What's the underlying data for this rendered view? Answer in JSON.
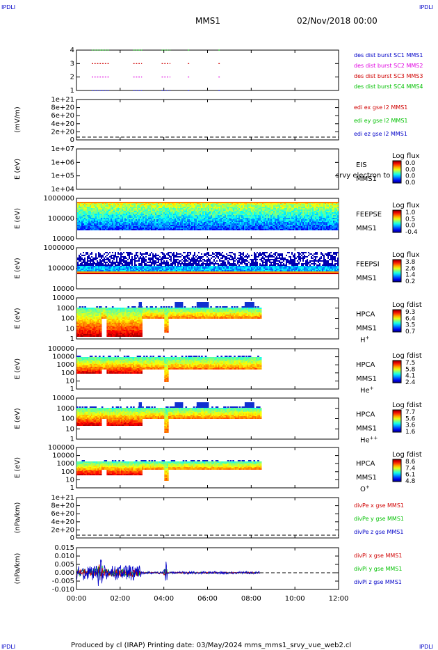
{
  "corner_label": "IPDLI",
  "header": {
    "spacecraft": "MMS1",
    "date": "02/Nov/2018 00:00"
  },
  "footer": {
    "text": "Produced by cl (IRAP)   Printing date: 03/May/2024   mms_mms1_srvy_vue_web2.cl"
  },
  "colors": {
    "red": "#d00000",
    "magenta": "#e000e0",
    "blue": "#0000c8",
    "green": "#00c000",
    "black": "#000000"
  },
  "chart_data": {
    "type": "heatmap",
    "x_ticks": [
      "00:00",
      "02:00",
      "04:00",
      "06:00",
      "08:00",
      "10:00",
      "12:00"
    ],
    "x_range_hours": [
      0,
      12
    ],
    "panels": [
      {
        "id": "burst",
        "type": "scatter",
        "ylabel": "",
        "y_ticks": [
          "4",
          "3",
          "2",
          "1"
        ],
        "legend": [
          {
            "text": "des dist burst SC1 MMS1",
            "color": "#0000c8"
          },
          {
            "text": "des dist burst SC2 MMS2",
            "color": "#e000e0"
          },
          {
            "text": "des dist burst SC3 MMS3",
            "color": "#d00000"
          },
          {
            "text": "des dist burst SC4 MMS4",
            "color": "#00c000"
          }
        ],
        "burst_intervals_hours": [
          [
            0.7,
            1.5
          ],
          [
            2.6,
            3.0
          ],
          [
            3.9,
            4.3
          ],
          [
            5.1,
            5.2
          ],
          [
            6.5,
            6.6
          ]
        ]
      },
      {
        "id": "edi",
        "type": "line",
        "ylabel": "(mV/m)",
        "y_ticks": [
          "1e+21",
          "8e+20",
          "6e+20",
          "4e+20",
          "2e+20",
          "0"
        ],
        "legend": [
          {
            "text": "edi ex gse l2 MMS1",
            "color": "#d00000"
          },
          {
            "text": "edi ey gse l2 MMS1",
            "color": "#00c000"
          },
          {
            "text": "edi ez gse l2 MMS1",
            "color": "#0000c8"
          }
        ]
      },
      {
        "id": "eis",
        "type": "heatmap",
        "ylabel": "E (eV)",
        "y_ticks": [
          "1e+07",
          "1e+06",
          "1e+05",
          "1e+04"
        ],
        "side": [
          "EIS",
          "MMS1"
        ],
        "overlay_text": "srvy electron to",
        "colorbar": {
          "title": "Log flux",
          "ticks": [
            "0.0",
            "0.0",
            "0.0",
            "0.0"
          ]
        }
      },
      {
        "id": "feepse",
        "type": "heatmap",
        "ylabel": "E (eV)",
        "y_ticks": [
          "1000000",
          "100000",
          "10000"
        ],
        "side": [
          "FEEPSE",
          "MMS1"
        ],
        "colorbar": {
          "title": "Log flux",
          "ticks": [
            "1.0",
            "0.5",
            "0.0",
            "-0.4"
          ]
        }
      },
      {
        "id": "feepsi",
        "type": "heatmap",
        "ylabel": "E (eV)",
        "y_ticks": [
          "1000000",
          "100000",
          "10000"
        ],
        "side": [
          "FEEPSI",
          "MMS1"
        ],
        "colorbar": {
          "title": "Log flux",
          "ticks": [
            "3.8",
            "2.6",
            "1.4",
            "0.2"
          ]
        }
      },
      {
        "id": "hpca_h",
        "type": "heatmap",
        "ylabel": "E (eV)",
        "y_ticks": [
          "10000",
          "1000",
          "100",
          "10",
          "1"
        ],
        "side": [
          "HPCA",
          "MMS1"
        ],
        "ion": "H",
        "ion_sup": "+",
        "colorbar": {
          "title": "Log fdist",
          "ticks": [
            "9.3",
            "6.4",
            "3.5",
            "0.7"
          ]
        }
      },
      {
        "id": "hpca_he",
        "type": "heatmap",
        "ylabel": "E (eV)",
        "y_ticks": [
          "100000",
          "10000",
          "1000",
          "100",
          "10",
          "1"
        ],
        "side": [
          "HPCA",
          "MMS1"
        ],
        "ion": "He",
        "ion_sup": "+",
        "colorbar": {
          "title": "Log fdist",
          "ticks": [
            "7.5",
            "5.8",
            "4.1",
            "2.4"
          ]
        }
      },
      {
        "id": "hpca_he2",
        "type": "heatmap",
        "ylabel": "E (eV)",
        "y_ticks": [
          "10000",
          "1000",
          "100",
          "10",
          "1"
        ],
        "side": [
          "HPCA",
          "MMS1"
        ],
        "ion": "He",
        "ion_sup": "++",
        "colorbar": {
          "title": "Log fdist",
          "ticks": [
            "7.7",
            "5.6",
            "3.6",
            "1.6"
          ]
        }
      },
      {
        "id": "hpca_o",
        "type": "heatmap",
        "ylabel": "E (eV)",
        "y_ticks": [
          "100000",
          "10000",
          "1000",
          "100",
          "10",
          "1"
        ],
        "side": [
          "HPCA",
          "MMS1"
        ],
        "ion": "O",
        "ion_sup": "+",
        "colorbar": {
          "title": "Log fdist",
          "ticks": [
            "8.6",
            "7.4",
            "6.1",
            "4.8"
          ]
        }
      },
      {
        "id": "divpe",
        "type": "line",
        "ylabel": "(nPa/km)",
        "y_ticks": [
          "1e+21",
          "8e+20",
          "6e+20",
          "4e+20",
          "2e+20",
          "0"
        ],
        "legend": [
          {
            "text": "divPe x gse MMS1",
            "color": "#d00000"
          },
          {
            "text": "divPe y gse MMS1",
            "color": "#00c000"
          },
          {
            "text": "divPe z gse MMS1",
            "color": "#0000c8"
          }
        ]
      },
      {
        "id": "divpi",
        "type": "line",
        "ylabel": "(nPa/km)",
        "y_ticks": [
          "0.015",
          "0.010",
          "0.005",
          "0.000",
          "-0.005",
          "-0.010"
        ],
        "ylim": [
          -0.01,
          0.015
        ],
        "data_end_hours": 8.4,
        "legend": [
          {
            "text": "divPi x gse MMS1",
            "color": "#d00000"
          },
          {
            "text": "divPi y gse MMS1",
            "color": "#00c000"
          },
          {
            "text": "divPi z gse MMS1",
            "color": "#0000c8"
          }
        ]
      }
    ]
  }
}
